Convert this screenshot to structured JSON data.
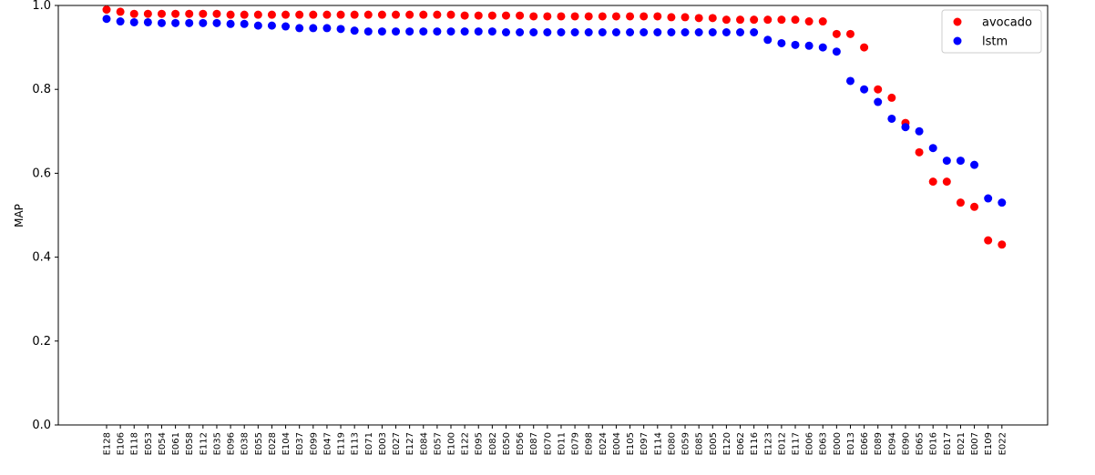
{
  "chart_data": {
    "type": "scatter",
    "title": "",
    "xlabel": "",
    "ylabel": "MAP",
    "ylim": [
      0.0,
      1.0
    ],
    "yticks": [
      "0.0",
      "0.2",
      "0.4",
      "0.6",
      "0.8",
      "1.0"
    ],
    "grid": false,
    "legend_position": "top-right",
    "categories": [
      "E128",
      "E106",
      "E118",
      "E053",
      "E054",
      "E061",
      "E058",
      "E112",
      "E035",
      "E096",
      "E038",
      "E055",
      "E028",
      "E104",
      "E037",
      "E099",
      "E047",
      "E119",
      "E113",
      "E071",
      "E003",
      "E027",
      "E127",
      "E084",
      "E057",
      "E100",
      "E122",
      "E095",
      "E082",
      "E050",
      "E056",
      "E087",
      "E070",
      "E011",
      "E079",
      "E098",
      "E024",
      "E004",
      "E105",
      "E097",
      "E114",
      "E080",
      "E059",
      "E085",
      "E005",
      "E120",
      "E062",
      "E116",
      "E123",
      "E012",
      "E117",
      "E006",
      "E063",
      "E000",
      "E013",
      "E066",
      "E089",
      "E094",
      "E090",
      "E065",
      "E016",
      "E017",
      "E021",
      "E007",
      "E109",
      "E022"
    ],
    "series": [
      {
        "name": "avocado",
        "color": "#ff0000",
        "values": [
          0.99,
          0.985,
          0.98,
          0.98,
          0.98,
          0.98,
          0.98,
          0.98,
          0.98,
          0.978,
          0.978,
          0.978,
          0.978,
          0.978,
          0.978,
          0.978,
          0.978,
          0.978,
          0.978,
          0.978,
          0.978,
          0.978,
          0.978,
          0.978,
          0.978,
          0.978,
          0.976,
          0.976,
          0.976,
          0.976,
          0.976,
          0.974,
          0.974,
          0.974,
          0.974,
          0.974,
          0.974,
          0.974,
          0.974,
          0.974,
          0.974,
          0.972,
          0.972,
          0.97,
          0.97,
          0.966,
          0.966,
          0.966,
          0.966,
          0.966,
          0.966,
          0.962,
          0.962,
          0.932,
          0.932,
          0.9,
          0.8,
          0.78,
          0.72,
          0.65,
          0.58,
          0.58,
          0.53,
          0.52,
          0.44,
          0.43
        ]
      },
      {
        "name": "lstm",
        "color": "#0000ff",
        "values": [
          0.968,
          0.962,
          0.96,
          0.96,
          0.958,
          0.958,
          0.958,
          0.958,
          0.958,
          0.956,
          0.956,
          0.952,
          0.952,
          0.95,
          0.946,
          0.946,
          0.946,
          0.944,
          0.94,
          0.938,
          0.938,
          0.938,
          0.938,
          0.938,
          0.938,
          0.938,
          0.938,
          0.938,
          0.938,
          0.936,
          0.936,
          0.936,
          0.936,
          0.936,
          0.936,
          0.936,
          0.936,
          0.936,
          0.936,
          0.936,
          0.936,
          0.936,
          0.936,
          0.936,
          0.936,
          0.936,
          0.936,
          0.936,
          0.918,
          0.91,
          0.906,
          0.904,
          0.9,
          0.89,
          0.82,
          0.8,
          0.77,
          0.73,
          0.71,
          0.7,
          0.66,
          0.63,
          0.63,
          0.62,
          0.54,
          0.53
        ]
      }
    ]
  }
}
